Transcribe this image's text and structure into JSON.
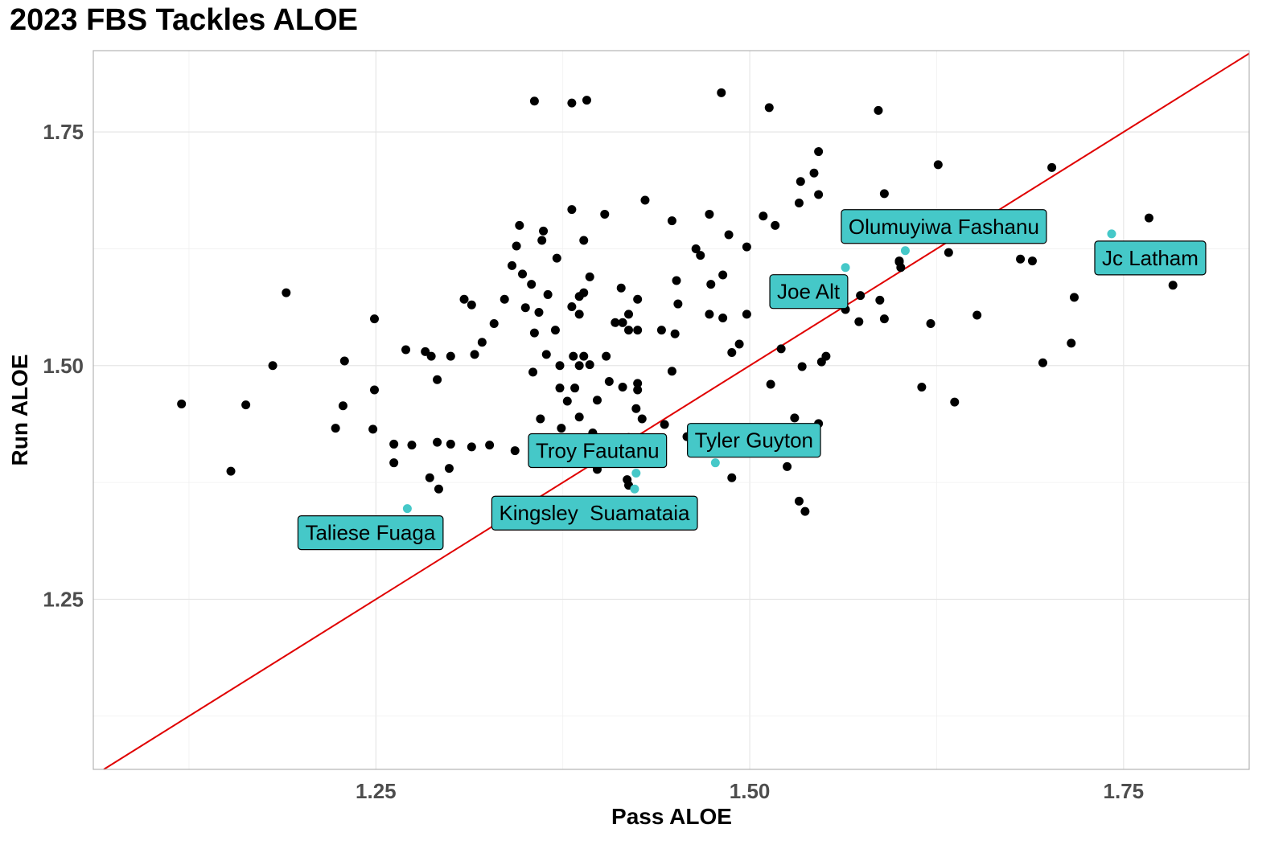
{
  "chart_data": {
    "type": "scatter",
    "title": "2023 FBS Tackles ALOE",
    "xlabel": "Pass ALOE",
    "ylabel": "Run ALOE",
    "xlim": [
      1.061,
      1.834
    ],
    "ylim": [
      1.068,
      1.837
    ],
    "x_ticks": [
      1.25,
      1.5,
      1.75
    ],
    "x_tick_labels": [
      "1.25",
      "1.50",
      "1.75"
    ],
    "y_ticks": [
      1.25,
      1.5,
      1.75
    ],
    "y_tick_labels": [
      "1.25",
      "1.50",
      "1.75"
    ],
    "grid": true,
    "reference_line": {
      "slope": 1,
      "intercept": 0,
      "color": "#e00000"
    },
    "colors": {
      "default_point": "#000000",
      "highlight_point": "#45c8c8",
      "label_fill": "#45c8c8"
    },
    "highlighted": [
      {
        "name": "Olumuyiwa Fashanu",
        "x": 1.604,
        "y": 1.623
      },
      {
        "name": "Jc Latham",
        "x": 1.742,
        "y": 1.641
      },
      {
        "name": "Joe Alt",
        "x": 1.564,
        "y": 1.605
      },
      {
        "name": "Tyler Guyton",
        "x": 1.477,
        "y": 1.396
      },
      {
        "name": "Troy Fautanu",
        "x": 1.424,
        "y": 1.385
      },
      {
        "name": "Kingsley  Suamataia",
        "x": 1.423,
        "y": 1.368
      },
      {
        "name": "Taliese Fuaga",
        "x": 1.271,
        "y": 1.347
      }
    ],
    "points": [
      [
        1.356,
        1.783
      ],
      [
        1.381,
        1.781
      ],
      [
        1.391,
        1.784
      ],
      [
        1.481,
        1.792
      ],
      [
        1.513,
        1.776
      ],
      [
        1.586,
        1.773
      ],
      [
        1.546,
        1.729
      ],
      [
        1.626,
        1.715
      ],
      [
        1.702,
        1.712
      ],
      [
        1.543,
        1.706
      ],
      [
        1.534,
        1.697
      ],
      [
        1.546,
        1.683
      ],
      [
        1.43,
        1.677
      ],
      [
        1.533,
        1.674
      ],
      [
        1.59,
        1.684
      ],
      [
        1.381,
        1.667
      ],
      [
        1.403,
        1.662
      ],
      [
        1.473,
        1.662
      ],
      [
        1.509,
        1.66
      ],
      [
        1.346,
        1.65
      ],
      [
        1.362,
        1.644
      ],
      [
        1.448,
        1.655
      ],
      [
        1.517,
        1.65
      ],
      [
        1.767,
        1.658
      ],
      [
        1.486,
        1.64
      ],
      [
        1.361,
        1.634
      ],
      [
        1.389,
        1.634
      ],
      [
        1.344,
        1.628
      ],
      [
        1.498,
        1.627
      ],
      [
        1.464,
        1.625
      ],
      [
        1.467,
        1.618
      ],
      [
        1.371,
        1.615
      ],
      [
        1.6,
        1.612
      ],
      [
        1.633,
        1.621
      ],
      [
        1.681,
        1.614
      ],
      [
        1.689,
        1.612
      ],
      [
        1.6,
        1.611
      ],
      [
        1.341,
        1.607
      ],
      [
        1.348,
        1.598
      ],
      [
        1.393,
        1.595
      ],
      [
        1.601,
        1.605
      ],
      [
        1.482,
        1.597
      ],
      [
        1.451,
        1.591
      ],
      [
        1.354,
        1.587
      ],
      [
        1.474,
        1.587
      ],
      [
        1.389,
        1.578
      ],
      [
        1.386,
        1.574
      ],
      [
        1.414,
        1.583
      ],
      [
        1.19,
        1.578
      ],
      [
        1.365,
        1.576
      ],
      [
        1.336,
        1.571
      ],
      [
        1.309,
        1.571
      ],
      [
        1.314,
        1.565
      ],
      [
        1.425,
        1.571
      ],
      [
        1.452,
        1.566
      ],
      [
        1.574,
        1.575
      ],
      [
        1.587,
        1.57
      ],
      [
        1.717,
        1.573
      ],
      [
        1.564,
        1.56
      ],
      [
        1.381,
        1.563
      ],
      [
        1.35,
        1.562
      ],
      [
        1.359,
        1.557
      ],
      [
        1.386,
        1.555
      ],
      [
        1.419,
        1.555
      ],
      [
        1.473,
        1.555
      ],
      [
        1.482,
        1.551
      ],
      [
        1.498,
        1.555
      ],
      [
        1.652,
        1.554
      ],
      [
        1.249,
        1.55
      ],
      [
        1.329,
        1.545
      ],
      [
        1.41,
        1.546
      ],
      [
        1.415,
        1.546
      ],
      [
        1.573,
        1.547
      ],
      [
        1.59,
        1.55
      ],
      [
        1.621,
        1.545
      ],
      [
        1.37,
        1.538
      ],
      [
        1.356,
        1.535
      ],
      [
        1.419,
        1.538
      ],
      [
        1.425,
        1.538
      ],
      [
        1.441,
        1.538
      ],
      [
        1.45,
        1.534
      ],
      [
        1.321,
        1.525
      ],
      [
        1.493,
        1.523
      ],
      [
        1.521,
        1.518
      ],
      [
        1.27,
        1.517
      ],
      [
        1.283,
        1.515
      ],
      [
        1.287,
        1.51
      ],
      [
        1.3,
        1.51
      ],
      [
        1.316,
        1.512
      ],
      [
        1.364,
        1.512
      ],
      [
        1.382,
        1.51
      ],
      [
        1.389,
        1.51
      ],
      [
        1.404,
        1.51
      ],
      [
        1.488,
        1.514
      ],
      [
        1.551,
        1.51
      ],
      [
        1.548,
        1.504
      ],
      [
        1.715,
        1.524
      ],
      [
        1.229,
        1.505
      ],
      [
        1.181,
        1.5
      ],
      [
        1.373,
        1.5
      ],
      [
        1.386,
        1.5
      ],
      [
        1.393,
        1.501
      ],
      [
        1.355,
        1.493
      ],
      [
        1.448,
        1.494
      ],
      [
        1.535,
        1.499
      ],
      [
        1.696,
        1.503
      ],
      [
        1.291,
        1.485
      ],
      [
        1.406,
        1.483
      ],
      [
        1.415,
        1.477
      ],
      [
        1.425,
        1.481
      ],
      [
        1.373,
        1.476
      ],
      [
        1.383,
        1.476
      ],
      [
        1.425,
        1.474
      ],
      [
        1.514,
        1.48
      ],
      [
        1.615,
        1.477
      ],
      [
        1.249,
        1.474
      ],
      [
        1.12,
        1.459
      ],
      [
        1.163,
        1.458
      ],
      [
        1.228,
        1.457
      ],
      [
        1.378,
        1.462
      ],
      [
        1.398,
        1.463
      ],
      [
        1.637,
        1.461
      ],
      [
        1.424,
        1.454
      ],
      [
        1.36,
        1.443
      ],
      [
        1.386,
        1.445
      ],
      [
        1.428,
        1.443
      ],
      [
        1.53,
        1.444
      ],
      [
        1.546,
        1.438
      ],
      [
        1.223,
        1.433
      ],
      [
        1.248,
        1.432
      ],
      [
        1.374,
        1.433
      ],
      [
        1.443,
        1.437
      ],
      [
        1.395,
        1.428
      ],
      [
        1.504,
        1.432
      ],
      [
        1.458,
        1.424
      ],
      [
        1.419,
        1.423
      ],
      [
        1.423,
        1.421
      ],
      [
        1.262,
        1.416
      ],
      [
        1.274,
        1.415
      ],
      [
        1.291,
        1.418
      ],
      [
        1.3,
        1.416
      ],
      [
        1.314,
        1.413
      ],
      [
        1.326,
        1.415
      ],
      [
        1.343,
        1.409
      ],
      [
        1.262,
        1.396
      ],
      [
        1.398,
        1.389
      ],
      [
        1.299,
        1.39
      ],
      [
        1.525,
        1.392
      ],
      [
        1.153,
        1.387
      ],
      [
        1.286,
        1.38
      ],
      [
        1.418,
        1.378
      ],
      [
        1.488,
        1.38
      ],
      [
        1.292,
        1.368
      ],
      [
        1.419,
        1.372
      ],
      [
        1.533,
        1.355
      ],
      [
        1.537,
        1.344
      ],
      [
        1.783,
        1.586
      ]
    ],
    "annotations": [
      "Olumuyiwa Fashanu",
      "Jc Latham",
      "Joe Alt",
      "Tyler Guyton",
      "Troy Fautanu",
      "Kingsley  Suamataia",
      "Taliese Fuaga"
    ]
  }
}
